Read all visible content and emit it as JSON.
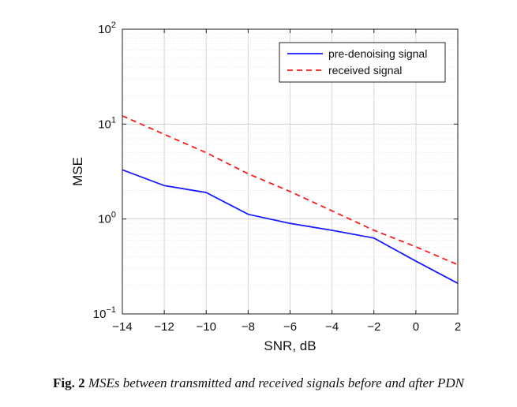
{
  "chart_data": {
    "type": "line",
    "xlabel": "SNR, dB",
    "ylabel": "MSE",
    "x": [
      -14,
      -12,
      -10,
      -8,
      -6,
      -4,
      -2,
      0,
      2
    ],
    "xlim": [
      -14,
      2
    ],
    "xticks": [
      "−14",
      "−12",
      "−10",
      "−8",
      "−6",
      "−4",
      "−2",
      "0",
      "2"
    ],
    "yscale": "log",
    "ylim": [
      0.1,
      100
    ],
    "yticks": [
      {
        "base": "10",
        "exp": "−1"
      },
      {
        "base": "10",
        "exp": "0"
      },
      {
        "base": "10",
        "exp": "1"
      },
      {
        "base": "10",
        "exp": "2"
      }
    ],
    "grid": true,
    "legend_position": "top-right",
    "series": [
      {
        "name": "pre-denoising signal",
        "color": "#1a1aff",
        "dash": "solid",
        "values": [
          3.3,
          2.25,
          1.9,
          1.12,
          0.9,
          0.76,
          0.63,
          0.36,
          0.21
        ]
      },
      {
        "name": "received signal",
        "color": "#ff1a1a",
        "dash": "dashed",
        "values": [
          12.2,
          7.8,
          5.0,
          3.0,
          1.95,
          1.22,
          0.76,
          0.51,
          0.33
        ]
      }
    ]
  },
  "caption": {
    "label": "Fig. 2",
    "text": "MSEs between transmitted and received signals before and after PDN"
  }
}
